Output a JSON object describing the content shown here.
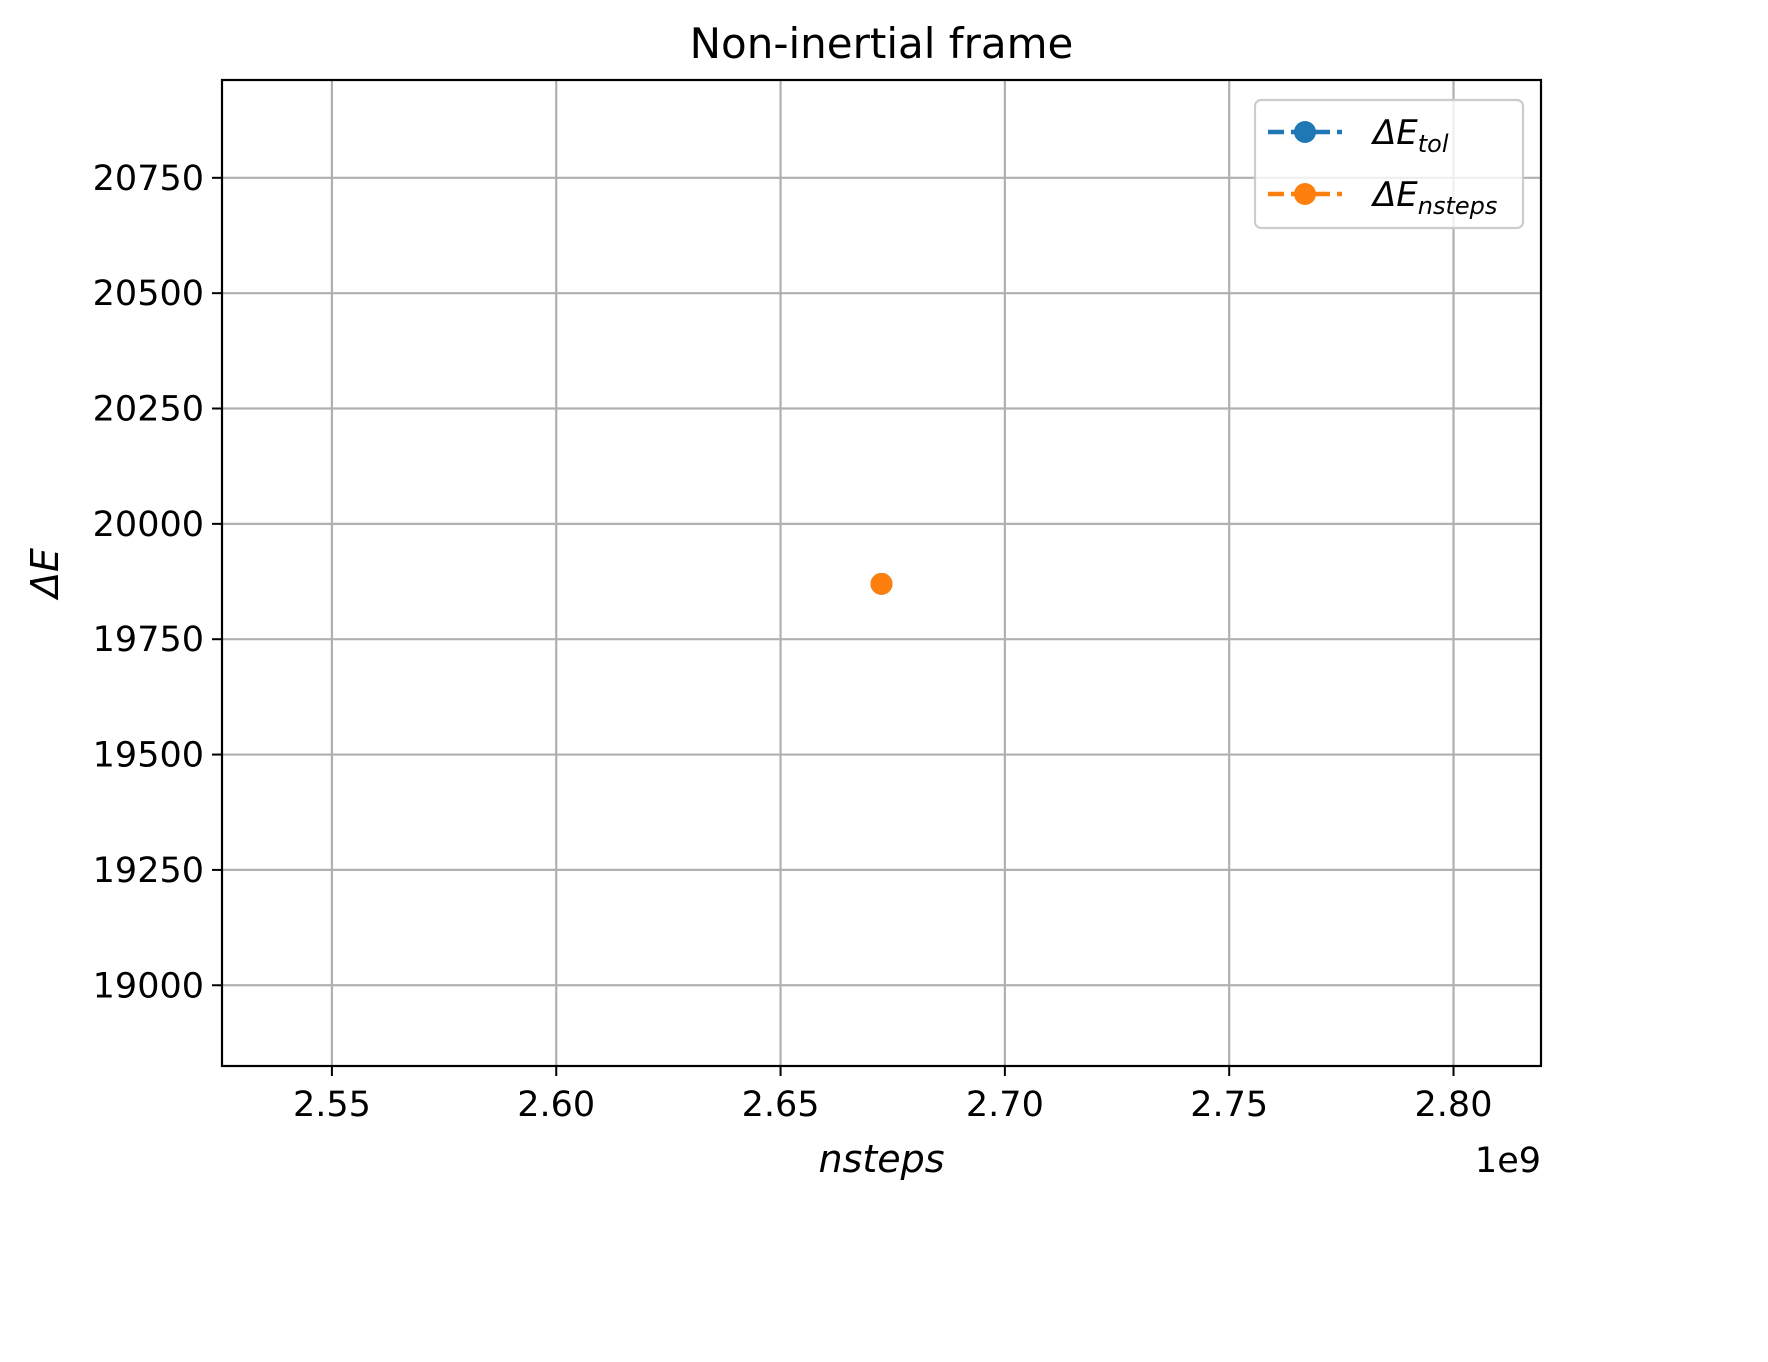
{
  "chart_data": {
    "type": "scatter",
    "title": "Non-inertial frame",
    "xlabel": "nsteps",
    "ylabel": "ΔE",
    "x_offset_text": "1e9",
    "xlim": [
      2.5255,
      2.8195
    ],
    "ylim": [
      18825,
      20962
    ],
    "x_ticks": [
      2.55,
      2.6,
      2.65,
      2.7,
      2.75,
      2.8
    ],
    "x_tick_labels": [
      "2.55",
      "2.60",
      "2.65",
      "2.70",
      "2.75",
      "2.80"
    ],
    "y_ticks": [
      19000,
      19250,
      19500,
      19750,
      20000,
      20250,
      20500,
      20750
    ],
    "y_tick_labels": [
      "19000",
      "19250",
      "19500",
      "19750",
      "20000",
      "20250",
      "20500",
      "20750"
    ],
    "grid": true,
    "legend_position": "top-right",
    "series": [
      {
        "name": "ΔE_tol",
        "legend_main": "ΔE",
        "legend_sub": "tol",
        "color": "#1f77b4",
        "line_style": "dashed",
        "marker": "circle",
        "points": [
          {
            "x": 2.6725,
            "y": 19870
          }
        ]
      },
      {
        "name": "ΔE_nsteps",
        "legend_main": "ΔE",
        "legend_sub": "nsteps",
        "color": "#ff7f0e",
        "line_style": "dashed",
        "marker": "circle",
        "points": [
          {
            "x": 2.6725,
            "y": 19870
          }
        ]
      }
    ]
  }
}
